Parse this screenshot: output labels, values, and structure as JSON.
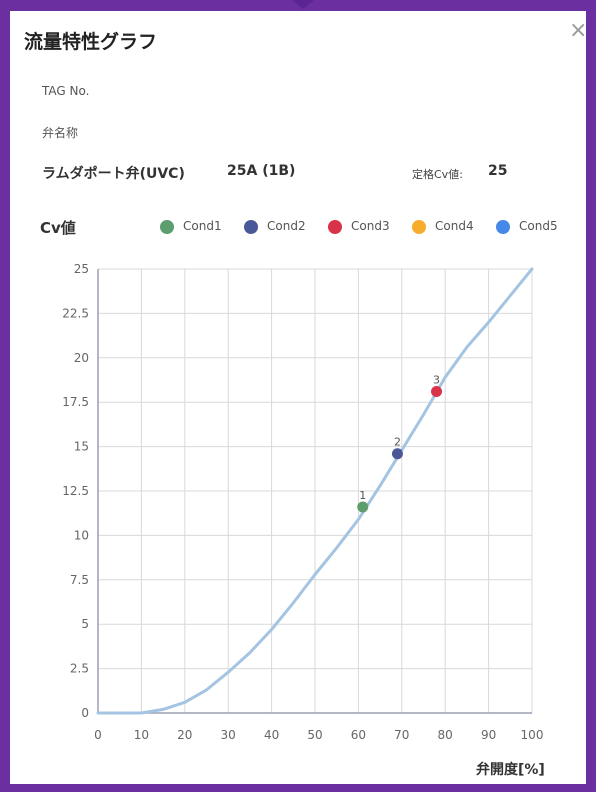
{
  "dialog": {
    "title": "流量特性グラフ",
    "close_label": "×"
  },
  "info": {
    "tag_label": "TAG No.",
    "valve_name_label": "弁名称",
    "valve_type": "ラムダポート弁(UVC)",
    "size": "25A (1B)",
    "rated_cv_label": "定格Cv値:",
    "rated_cv_value": "25"
  },
  "colors": {
    "curve": "#a4c4e2",
    "grid": "#d9d9d9",
    "axis": "#9aa0b0"
  },
  "chart_data": {
    "type": "line",
    "ylabel": "Cv値",
    "xlabel": "弁開度[%]",
    "xlim": [
      0,
      100
    ],
    "ylim": [
      0,
      25
    ],
    "xticks": [
      0,
      10,
      20,
      30,
      40,
      50,
      60,
      70,
      80,
      90,
      100
    ],
    "yticks": [
      "0",
      "2.5",
      "5",
      "7.5",
      "10",
      "12.5",
      "15",
      "17.5",
      "20",
      "22.5",
      "25"
    ],
    "grid": true,
    "legend_position": "top",
    "legend": [
      {
        "name": "Cond1",
        "color": "#5d9e6e"
      },
      {
        "name": "Cond2",
        "color": "#4a5899"
      },
      {
        "name": "Cond3",
        "color": "#d9334a"
      },
      {
        "name": "Cond4",
        "color": "#f6ad2b"
      },
      {
        "name": "Cond5",
        "color": "#4688e8"
      }
    ],
    "curve": {
      "x": [
        0,
        10,
        15,
        20,
        25,
        30,
        35,
        40,
        45,
        50,
        55,
        60,
        65,
        70,
        75,
        80,
        85,
        90,
        95,
        100
      ],
      "y": [
        0,
        0,
        0.2,
        0.6,
        1.3,
        2.3,
        3.4,
        4.7,
        6.2,
        7.8,
        9.3,
        10.9,
        12.8,
        14.8,
        16.8,
        18.9,
        20.6,
        22.0,
        23.5,
        25.0
      ]
    },
    "points": [
      {
        "label": "1",
        "x": 61,
        "y": 11.6,
        "color": "#5d9e6e"
      },
      {
        "label": "2",
        "x": 69,
        "y": 14.6,
        "color": "#4a5899"
      },
      {
        "label": "3",
        "x": 78,
        "y": 18.1,
        "color": "#d9334a"
      }
    ]
  }
}
